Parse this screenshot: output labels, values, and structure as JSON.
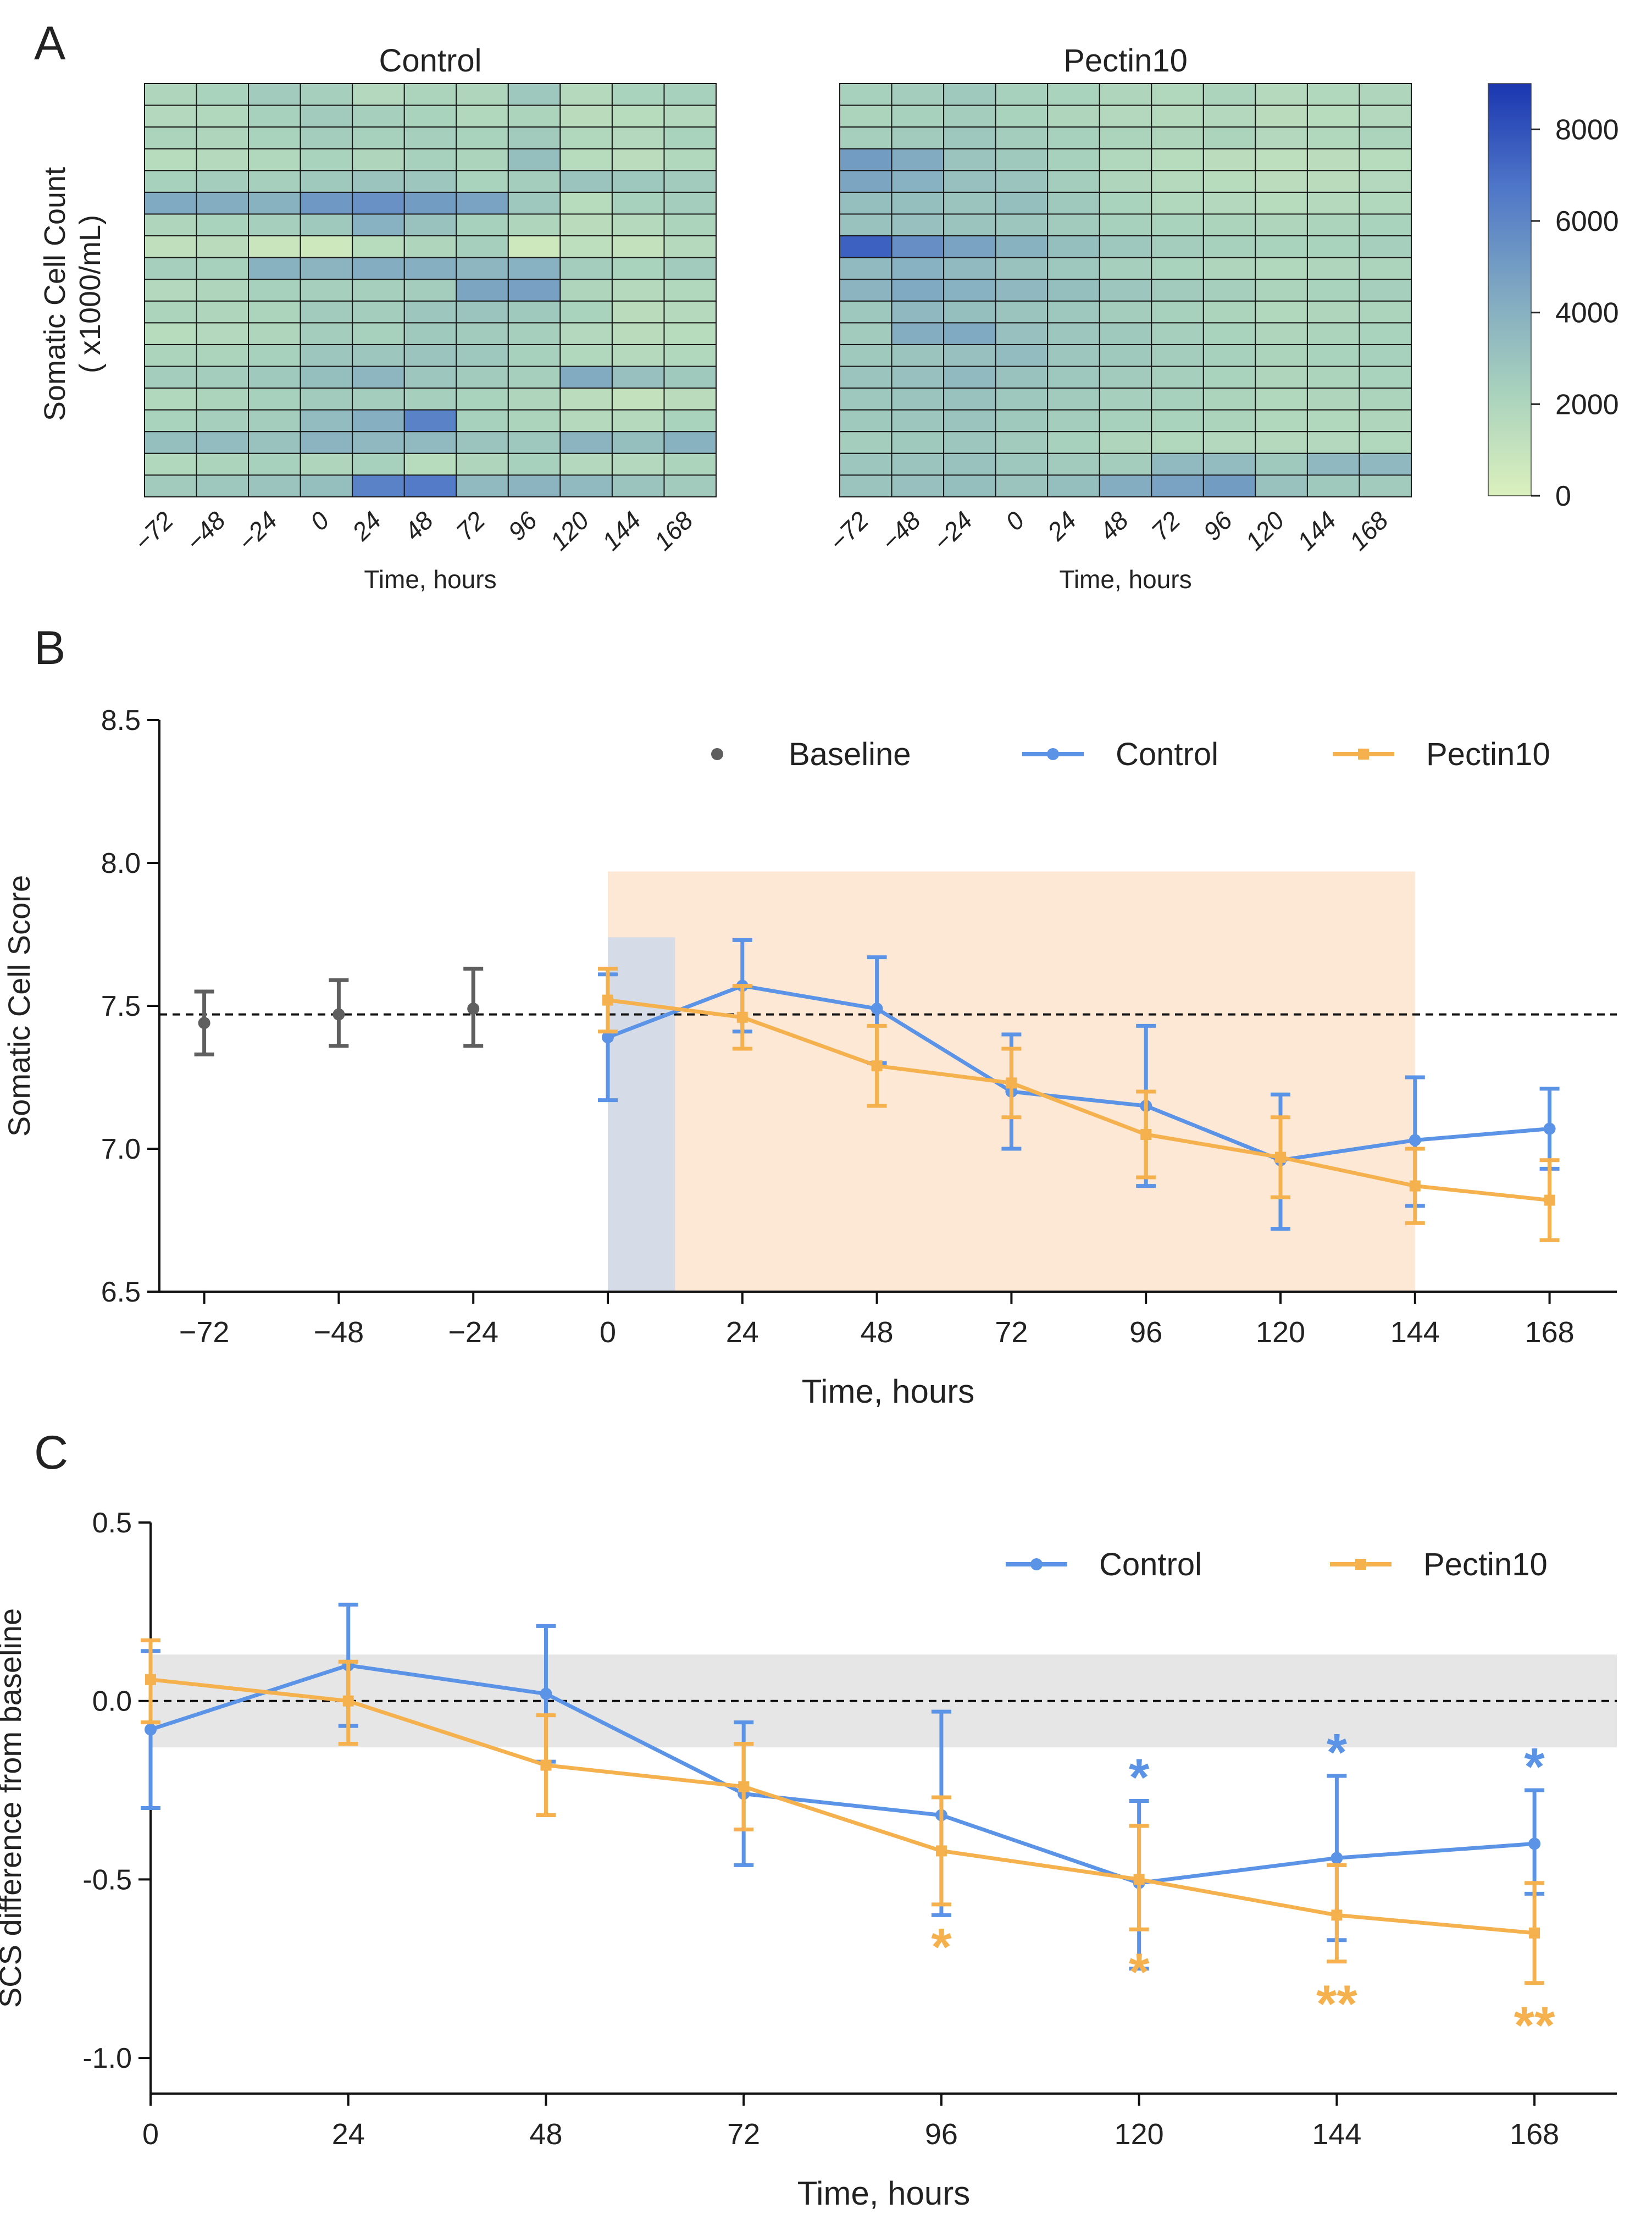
{
  "panel_letters": {
    "a": "A",
    "b": "B",
    "c": "C"
  },
  "colors": {
    "control": "#5b93e6",
    "pectin": "#f5b14e",
    "baseline": "#5f5f5f",
    "heat_low": "#dbf0bd",
    "heat_high": "#1b36b0",
    "challenge_band": "#d6dbe8",
    "treatment_band": "#fde8d6",
    "ref_band": "#e6e6e6"
  },
  "chart_data": [
    {
      "id": "A",
      "type": "heatmap",
      "ylabel_line1": "Somatic Cell Count",
      "ylabel_line2": "( x1000/mL)",
      "xlabel": "Time, hours",
      "x_ticks": [
        "-72",
        "-48",
        "-24",
        "0",
        "24",
        "48",
        "72",
        "96",
        "120",
        "144",
        "168"
      ],
      "colorbar": {
        "min": 0,
        "max": 9000,
        "ticks": [
          "0",
          "2000",
          "4000",
          "6000",
          "8000"
        ],
        "tick_values": [
          0,
          2000,
          4000,
          6000,
          8000
        ]
      },
      "panels": [
        {
          "title": "Control",
          "matrix": [
            [
              2000,
              2200,
              2600,
              2400,
              1800,
              2100,
              2000,
              2800,
              1700,
              2200,
              2300
            ],
            [
              1800,
              1900,
              2300,
              2600,
              2400,
              2200,
              1900,
              2100,
              1500,
              1600,
              1800
            ],
            [
              2100,
              2000,
              2200,
              2500,
              2300,
              2400,
              2200,
              2600,
              1900,
              1800,
              2200
            ],
            [
              1600,
              1700,
              1900,
              2200,
              2000,
              2300,
              2100,
              3300,
              1600,
              1400,
              1900
            ],
            [
              2300,
              2500,
              2400,
              2700,
              3000,
              2900,
              2200,
              2500,
              3000,
              2800,
              2600
            ],
            [
              4400,
              4200,
              3900,
              5200,
              5500,
              5000,
              4700,
              2800,
              1600,
              2300,
              2500
            ],
            [
              2000,
              2200,
              2400,
              2700,
              4000,
              3100,
              2300,
              2000,
              1500,
              1700,
              2100
            ],
            [
              1200,
              1500,
              800,
              600,
              1600,
              2000,
              2400,
              600,
              1300,
              1100,
              1700
            ],
            [
              2400,
              2300,
              3900,
              3800,
              4200,
              4100,
              3700,
              4000,
              2500,
              2200,
              2600
            ],
            [
              1800,
              2000,
              2300,
              2400,
              2400,
              2500,
              4600,
              4800,
              2000,
              1700,
              1900
            ],
            [
              2100,
              2000,
              2100,
              2600,
              2500,
              2900,
              3000,
              2700,
              2200,
              1500,
              1700
            ],
            [
              1600,
              1800,
              2000,
              2500,
              2300,
              2700,
              2600,
              2400,
              1800,
              1500,
              1600
            ],
            [
              2100,
              2100,
              2300,
              2900,
              2900,
              3000,
              2800,
              2300,
              1900,
              1700,
              1900
            ],
            [
              2500,
              2500,
              2700,
              3300,
              3700,
              2900,
              2600,
              2400,
              4300,
              3200,
              2700
            ],
            [
              1900,
              2100,
              2300,
              2600,
              2500,
              2400,
              2200,
              2000,
              1400,
              1100,
              1500
            ],
            [
              2200,
              2400,
              2500,
              3400,
              4100,
              6200,
              2300,
              2100,
              1700,
              1700,
              2200
            ],
            [
              3300,
              3400,
              3100,
              3800,
              3600,
              3500,
              3000,
              2800,
              3800,
              3300,
              3900
            ],
            [
              1900,
              2100,
              2300,
              2000,
              2300,
              1600,
              2000,
              2300,
              1800,
              1800,
              2100
            ],
            [
              2600,
              2800,
              3000,
              3300,
              6200,
              6500,
              3500,
              3800,
              3500,
              3000,
              2600
            ]
          ]
        },
        {
          "title": "Pectin10",
          "matrix": [
            [
              2300,
              2500,
              2700,
              2300,
              2200,
              2000,
              1900,
              2100,
              1700,
              1900,
              2000
            ],
            [
              2100,
              2300,
              2500,
              2200,
              2000,
              1800,
              1700,
              1800,
              1500,
              1600,
              1800
            ],
            [
              2400,
              2600,
              2800,
              2500,
              2300,
              2100,
              2000,
              2100,
              1800,
              1900,
              2100
            ],
            [
              5000,
              4300,
              3000,
              2700,
              2300,
              1900,
              1600,
              1400,
              1300,
              1400,
              1600
            ],
            [
              4600,
              4000,
              3200,
              3000,
              2500,
              2000,
              1700,
              1600,
              1400,
              1500,
              1800
            ],
            [
              3300,
              3300,
              3000,
              3300,
              2700,
              2200,
              1900,
              1800,
              1600,
              1700,
              1900
            ],
            [
              3100,
              3200,
              3000,
              2900,
              2600,
              2300,
              2200,
              2100,
              2000,
              2100,
              2200
            ],
            [
              7500,
              5600,
              4700,
              3900,
              3300,
              2800,
              2500,
              2300,
              2200,
              2200,
              2400
            ],
            [
              3500,
              4000,
              3500,
              3100,
              2800,
              2400,
              2200,
              2000,
              1900,
              2000,
              2100
            ],
            [
              3800,
              4400,
              4000,
              3600,
              3300,
              2900,
              2600,
              2400,
              2100,
              2200,
              2400
            ],
            [
              2800,
              3600,
              3300,
              3000,
              2800,
              2500,
              2300,
              2100,
              1900,
              2000,
              2100
            ],
            [
              2600,
              4200,
              4400,
              3200,
              2900,
              2700,
              2400,
              2200,
              2000,
              2100,
              2200
            ],
            [
              2700,
              3000,
              3200,
              3400,
              2900,
              2700,
              2500,
              2300,
              2100,
              2200,
              2300
            ],
            [
              3000,
              3200,
              3500,
              3100,
              2800,
              2600,
              2400,
              2200,
              2000,
              2100,
              2200
            ],
            [
              2800,
              3000,
              3100,
              2800,
              2600,
              2400,
              2300,
              2100,
              1900,
              2000,
              2100
            ],
            [
              2700,
              2900,
              3000,
              2700,
              2500,
              2300,
              2200,
              2100,
              1900,
              1900,
              2000
            ],
            [
              2500,
              2700,
              2900,
              2600,
              2300,
              2000,
              1900,
              1800,
              1700,
              1800,
              1900
            ],
            [
              2900,
              3000,
              3100,
              2800,
              2600,
              2500,
              3500,
              3400,
              2700,
              3600,
              3600
            ],
            [
              3000,
              3200,
              3300,
              3000,
              3300,
              4200,
              4700,
              5000,
              3100,
              2700,
              2600
            ]
          ]
        }
      ]
    },
    {
      "id": "B",
      "type": "line",
      "ylabel": "Somatic Cell Score",
      "xlabel": "Time, hours",
      "ylim": [
        6.5,
        8.5
      ],
      "xlim": [
        -80,
        180
      ],
      "y_ticks": [
        "6.5",
        "7.0",
        "7.5",
        "8.0",
        "8.5"
      ],
      "y_tick_values": [
        6.5,
        7.0,
        7.5,
        8.0,
        8.5
      ],
      "x_tick_labels": [
        "−72",
        "−48",
        "−24",
        "0",
        "24",
        "48",
        "72",
        "96",
        "120",
        "144",
        "168"
      ],
      "x_tick_values": [
        -72,
        -48,
        -24,
        0,
        24,
        48,
        72,
        96,
        120,
        144,
        168
      ],
      "reference_line": 7.47,
      "shaded_regions": [
        {
          "name": "treatment",
          "x": [
            0,
            144
          ],
          "y": [
            6.5,
            7.97
          ]
        },
        {
          "name": "challenge",
          "x": [
            0,
            12
          ],
          "y": [
            6.5,
            7.74
          ]
        }
      ],
      "legend": {
        "baseline": "Baseline",
        "control": "Control",
        "pectin": "Pectin10"
      },
      "series": [
        {
          "name": "Baseline",
          "x": [
            -72,
            -48,
            -24
          ],
          "y": [
            7.44,
            7.47,
            7.49
          ],
          "err_low": [
            7.33,
            7.36,
            7.36
          ],
          "err_high": [
            7.55,
            7.59,
            7.63
          ]
        },
        {
          "name": "Control",
          "x": [
            0,
            24,
            48,
            72,
            96,
            120,
            144,
            168
          ],
          "y": [
            7.39,
            7.57,
            7.49,
            7.2,
            7.15,
            6.96,
            7.03,
            7.07
          ],
          "err_low": [
            7.17,
            7.41,
            7.3,
            7.0,
            6.87,
            6.72,
            6.8,
            6.93
          ],
          "err_high": [
            7.61,
            7.73,
            7.67,
            7.4,
            7.43,
            7.19,
            7.25,
            7.21
          ]
        },
        {
          "name": "Pectin10",
          "x": [
            0,
            24,
            48,
            72,
            96,
            120,
            144,
            168
          ],
          "y": [
            7.52,
            7.46,
            7.29,
            7.23,
            7.05,
            6.97,
            6.87,
            6.82
          ],
          "err_low": [
            7.41,
            7.35,
            7.15,
            7.11,
            6.9,
            6.83,
            6.74,
            6.68
          ],
          "err_high": [
            7.63,
            7.57,
            7.43,
            7.35,
            7.2,
            7.11,
            7.0,
            6.96
          ]
        }
      ]
    },
    {
      "id": "C",
      "type": "line",
      "ylabel": "SCS difference from baseline",
      "xlabel": "Time, hours",
      "ylim": [
        -1.1,
        0.5
      ],
      "xlim": [
        0,
        178
      ],
      "y_ticks": [
        "-1.0",
        "-0.5",
        "0.0",
        "0.5"
      ],
      "y_tick_values": [
        -1.0,
        -0.5,
        0.0,
        0.5
      ],
      "x_tick_labels": [
        "0",
        "24",
        "48",
        "72",
        "96",
        "120",
        "144",
        "168"
      ],
      "x_tick_values": [
        0,
        24,
        48,
        72,
        96,
        120,
        144,
        168
      ],
      "reference_line": 0.0,
      "reference_band": [
        -0.13,
        0.13
      ],
      "legend": {
        "control": "Control",
        "pectin": "Pectin10"
      },
      "series": [
        {
          "name": "Control",
          "x": [
            0,
            24,
            48,
            72,
            96,
            120,
            144,
            168
          ],
          "y": [
            -0.08,
            0.1,
            0.02,
            -0.26,
            -0.32,
            -0.51,
            -0.44,
            -0.4
          ],
          "err_low": [
            -0.3,
            -0.07,
            -0.17,
            -0.46,
            -0.6,
            -0.75,
            -0.67,
            -0.54
          ],
          "err_high": [
            0.14,
            0.27,
            0.21,
            -0.06,
            -0.03,
            -0.28,
            -0.21,
            -0.25
          ]
        },
        {
          "name": "Pectin10",
          "x": [
            0,
            24,
            48,
            72,
            96,
            120,
            144,
            168
          ],
          "y": [
            0.06,
            0.0,
            -0.18,
            -0.24,
            -0.42,
            -0.5,
            -0.6,
            -0.65
          ],
          "err_low": [
            -0.06,
            -0.12,
            -0.32,
            -0.36,
            -0.57,
            -0.64,
            -0.73,
            -0.79
          ],
          "err_high": [
            0.17,
            0.11,
            -0.04,
            -0.12,
            -0.27,
            -0.35,
            -0.46,
            -0.51
          ]
        }
      ],
      "significance": [
        {
          "series": "Control",
          "x": 120,
          "text": "*"
        },
        {
          "series": "Control",
          "x": 144,
          "text": "*"
        },
        {
          "series": "Control",
          "x": 168,
          "text": "*"
        },
        {
          "series": "Pectin10",
          "x": 96,
          "text": "*"
        },
        {
          "series": "Pectin10",
          "x": 120,
          "text": "*"
        },
        {
          "series": "Pectin10",
          "x": 144,
          "text": "**"
        },
        {
          "series": "Pectin10",
          "x": 168,
          "text": "**"
        }
      ]
    }
  ]
}
